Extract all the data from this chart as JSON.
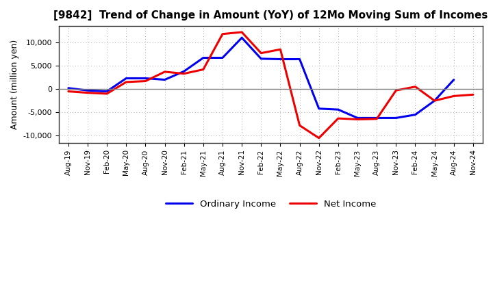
{
  "title": "[9842]  Trend of Change in Amount (YoY) of 12Mo Moving Sum of Incomes",
  "ylabel": "Amount (million yen)",
  "x_labels": [
    "Aug-19",
    "Nov-19",
    "Feb-20",
    "May-20",
    "Aug-20",
    "Nov-20",
    "Feb-21",
    "May-21",
    "Aug-21",
    "Nov-21",
    "Feb-22",
    "May-22",
    "Aug-22",
    "Nov-22",
    "Feb-23",
    "May-23",
    "Aug-23",
    "Nov-23",
    "Feb-24",
    "May-24",
    "Aug-24",
    "Nov-24"
  ],
  "ordinary_income": [
    200,
    -300,
    -500,
    2300,
    2300,
    2000,
    3800,
    6700,
    6700,
    11000,
    6500,
    6400,
    6400,
    -4200,
    -4400,
    -6200,
    -6200,
    -6200,
    -5500,
    -2500,
    2000,
    null
  ],
  "net_income": [
    -500,
    -800,
    -1000,
    1500,
    1700,
    3700,
    3300,
    4200,
    11800,
    12200,
    7700,
    8500,
    -7800,
    -10500,
    -6300,
    -6500,
    -6400,
    -300,
    500,
    -2500,
    -1500,
    -1200
  ],
  "ordinary_income_color": "#0000ee",
  "net_income_color": "#ee0000",
  "ylim": [
    -11500,
    13500
  ],
  "yticks": [
    -10000,
    -5000,
    0,
    5000,
    10000
  ],
  "plot_bg_color": "#ffffff",
  "background_color": "#ffffff",
  "grid_color": "#aaaaaa",
  "zero_line_color": "#808080",
  "legend_labels": [
    "Ordinary Income",
    "Net Income"
  ],
  "line_width": 2.2
}
